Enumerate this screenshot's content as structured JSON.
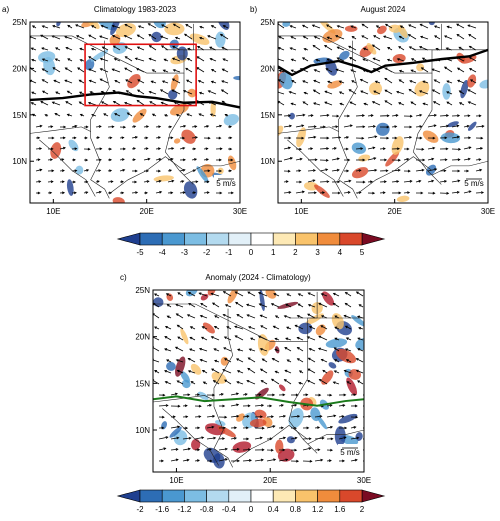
{
  "panels": [
    {
      "label": "a)",
      "title": "Climatology 1983-2023",
      "ref_vector": "5 m/s",
      "xlim": [
        7.5,
        30
      ],
      "ylim": [
        5.5,
        25
      ],
      "xticks": [
        {
          "value": 10,
          "label": "10E"
        },
        {
          "value": 20,
          "label": "20E"
        },
        {
          "value": 30,
          "label": "30E"
        }
      ],
      "yticks": [
        {
          "value": 10,
          "label": "10N"
        },
        {
          "value": 15,
          "label": "15N"
        },
        {
          "value": 20,
          "label": "20N"
        },
        {
          "value": 25,
          "label": "25N"
        }
      ]
    },
    {
      "label": "b)",
      "title": "August 2024",
      "ref_vector": "5 m/s",
      "xlim": [
        7.5,
        30
      ],
      "ylim": [
        5.5,
        25
      ],
      "xticks": [
        {
          "value": 10,
          "label": "10E"
        },
        {
          "value": 20,
          "label": "20E"
        },
        {
          "value": 30,
          "label": "30E"
        }
      ],
      "yticks": [
        {
          "value": 10,
          "label": "10N"
        },
        {
          "value": 15,
          "label": "15N"
        },
        {
          "value": 20,
          "label": "20N"
        },
        {
          "value": 25,
          "label": "25N"
        }
      ]
    },
    {
      "label": "c)",
      "title": "Anomaly (2024 - Climatology)",
      "ref_vector": "5 m/s",
      "xlim": [
        7.5,
        30
      ],
      "ylim": [
        5.5,
        25
      ],
      "xticks": [
        {
          "value": 10,
          "label": "10E"
        },
        {
          "value": 20,
          "label": "20E"
        },
        {
          "value": 30,
          "label": "30E"
        }
      ],
      "yticks": [
        {
          "value": 10,
          "label": "10N"
        },
        {
          "value": 15,
          "label": "15N"
        },
        {
          "value": 20,
          "label": "20N"
        },
        {
          "value": 25,
          "label": "25N"
        }
      ]
    }
  ],
  "colorbars": [
    {
      "ticks": [
        -5,
        -4,
        -3,
        -2,
        -1,
        0,
        1,
        2,
        3,
        4,
        5
      ]
    },
    {
      "ticks": [
        -2,
        -1.6,
        -1.2,
        -0.8,
        -0.4,
        0,
        0.4,
        0.8,
        1.2,
        1.6,
        2
      ]
    }
  ],
  "colors": [
    "#1f3f8f",
    "#2d6db5",
    "#4a98d0",
    "#7cbde3",
    "#b3daef",
    "#e2f0f8",
    "#ffffff",
    "#ffffff",
    "#fde9b5",
    "#f9c36b",
    "#f08c3c",
    "#d9482b",
    "#b1192a",
    "#7a0b22"
  ]
}
